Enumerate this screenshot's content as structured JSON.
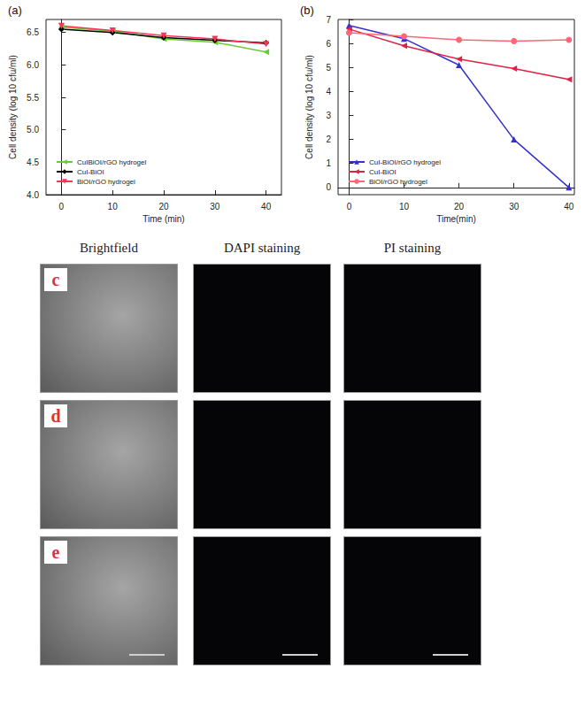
{
  "chart_data": [
    {
      "type": "line",
      "title": "(a)",
      "x_label": "Time (min)",
      "y_label": "Cell density (log 10 cfu/ml)",
      "x": [
        0,
        10,
        20,
        30,
        40
      ],
      "xlim": [
        -3,
        43
      ],
      "xticks": [
        0,
        10,
        20,
        30,
        40
      ],
      "ylim": [
        4,
        6.7
      ],
      "yticks": [
        {
          "value": 4,
          "label": "4.0"
        },
        {
          "value": 4.5,
          "label": "4.5"
        },
        {
          "value": 5,
          "label": "5.0"
        },
        {
          "value": 5.5,
          "label": "5.5"
        },
        {
          "value": 6,
          "label": "6.0"
        },
        {
          "value": 6.5,
          "label": "6.5"
        }
      ],
      "grid": false,
      "legend": "lower left",
      "series": [
        {
          "name": "CuIBiOI/rGO hydrogel",
          "color": "#66cc33",
          "marker": "triangle-left",
          "values": [
            6.58,
            6.52,
            6.4,
            6.35,
            6.2
          ]
        },
        {
          "name": "CuI-BiOI",
          "color": "#000000",
          "marker": "diamond",
          "values": [
            6.55,
            6.5,
            6.42,
            6.38,
            6.34
          ]
        },
        {
          "name": "BiOI/rGO hydrogel",
          "color": "#ff3355",
          "marker": "triangle-down",
          "values": [
            6.6,
            6.53,
            6.45,
            6.4,
            6.32
          ]
        }
      ]
    },
    {
      "type": "line",
      "title": "(b)",
      "x_label": "Time(min)",
      "y_label": "Cell density (log 10 cfu/ml)",
      "x": [
        0,
        10,
        20,
        30,
        40
      ],
      "xlim": [
        -2,
        41
      ],
      "xticks": [
        0,
        10,
        20,
        30,
        40
      ],
      "ylim": [
        -0.3,
        7
      ],
      "yticks": [
        0,
        1,
        2,
        3,
        4,
        5,
        6,
        7
      ],
      "grid": false,
      "legend": "lower left",
      "series": [
        {
          "name": "CuI-BiOI/rGO hydrogel",
          "color": "#3333cc",
          "marker": "triangle",
          "values": [
            6.75,
            6.2,
            5.1,
            2.0,
            0.0
          ]
        },
        {
          "name": "CuI-BiOI",
          "color": "#dd2244",
          "marker": "triangle-left",
          "values": [
            6.6,
            5.9,
            5.35,
            4.95,
            4.5
          ]
        },
        {
          "name": "BiOI/rGO hydrogel",
          "color": "#ff6677",
          "marker": "circle",
          "values": [
            6.45,
            6.3,
            6.15,
            6.1,
            6.15
          ]
        }
      ]
    }
  ],
  "image_panels": {
    "columns": [
      "Brightfield",
      "DAPI staining",
      "PI staining"
    ],
    "rows": [
      "c",
      "d",
      "e"
    ]
  }
}
